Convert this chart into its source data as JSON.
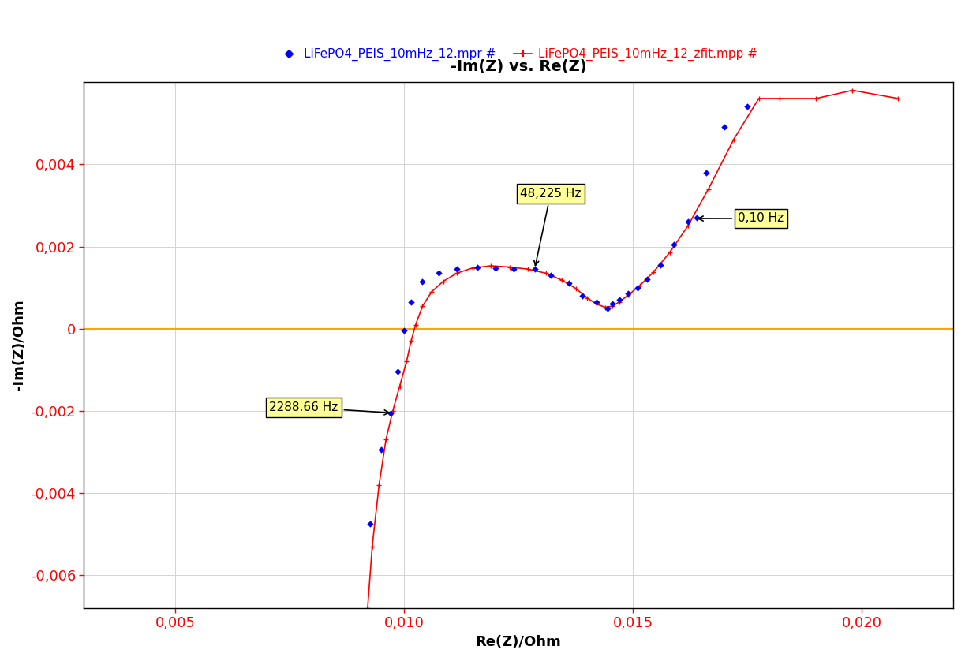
{
  "title": "-Im(Z) vs. Re(Z)",
  "xlabel": "Re(Z)/Ohm",
  "ylabel": "-Im(Z)/Ohm",
  "xlim": [
    0.003,
    0.022
  ],
  "ylim": [
    -0.0068,
    0.006
  ],
  "xticks": [
    0.005,
    0.01,
    0.015,
    0.02
  ],
  "yticks": [
    -0.006,
    -0.004,
    -0.002,
    0,
    0.002,
    0.004
  ],
  "legend1_label": "LiFePO4_PEIS_10mHz_12.mpr #",
  "legend2_label": "LiFePO4_PEIS_10mHz_12_zfit.mpp #",
  "color_blue": "#0000FF",
  "color_red": "#FF0000",
  "color_orange": "#FFA500",
  "color_yellow_bg": "#FFFF99",
  "blue_data": [
    [
      0.00925,
      -0.00475
    ],
    [
      0.0095,
      -0.00295
    ],
    [
      0.0097,
      -0.00205
    ],
    [
      0.00985,
      -0.00105
    ],
    [
      0.01,
      -5e-05
    ],
    [
      0.01015,
      0.00065
    ],
    [
      0.0104,
      0.00115
    ],
    [
      0.01075,
      0.00135
    ],
    [
      0.01115,
      0.00145
    ],
    [
      0.0116,
      0.0015
    ],
    [
      0.012,
      0.00148
    ],
    [
      0.0124,
      0.00145
    ],
    [
      0.01285,
      0.00145
    ],
    [
      0.0132,
      0.0013
    ],
    [
      0.0136,
      0.0011
    ],
    [
      0.0139,
      0.0008
    ],
    [
      0.0142,
      0.00065
    ],
    [
      0.01445,
      0.0005
    ],
    [
      0.01455,
      0.0006
    ],
    [
      0.0147,
      0.0007
    ],
    [
      0.0149,
      0.00085
    ],
    [
      0.0151,
      0.001
    ],
    [
      0.0153,
      0.0012
    ],
    [
      0.0156,
      0.00155
    ],
    [
      0.0159,
      0.00205
    ],
    [
      0.0162,
      0.0026
    ],
    [
      0.0164,
      0.0027
    ],
    [
      0.0166,
      0.0038
    ],
    [
      0.017,
      0.0049
    ],
    [
      0.0175,
      0.0054
    ]
  ],
  "red_data": [
    [
      0.0092,
      -0.0068
    ],
    [
      0.0093,
      -0.0053
    ],
    [
      0.00945,
      -0.0038
    ],
    [
      0.0096,
      -0.0027
    ],
    [
      0.00975,
      -0.002
    ],
    [
      0.0099,
      -0.0014
    ],
    [
      0.01005,
      -0.0008
    ],
    [
      0.01015,
      -0.0003
    ],
    [
      0.01025,
      0.0001
    ],
    [
      0.0104,
      0.00055
    ],
    [
      0.0106,
      0.0009
    ],
    [
      0.01085,
      0.00115
    ],
    [
      0.01115,
      0.00135
    ],
    [
      0.0115,
      0.00148
    ],
    [
      0.0119,
      0.00153
    ],
    [
      0.0123,
      0.0015
    ],
    [
      0.0127,
      0.00145
    ],
    [
      0.0131,
      0.00135
    ],
    [
      0.01345,
      0.00118
    ],
    [
      0.01375,
      0.00098
    ],
    [
      0.014,
      0.00075
    ],
    [
      0.0142,
      0.0006
    ],
    [
      0.0144,
      0.00052
    ],
    [
      0.01455,
      0.00055
    ],
    [
      0.0147,
      0.00065
    ],
    [
      0.0149,
      0.00082
    ],
    [
      0.01515,
      0.00105
    ],
    [
      0.01545,
      0.00138
    ],
    [
      0.0158,
      0.00185
    ],
    [
      0.0162,
      0.0025
    ],
    [
      0.01665,
      0.0034
    ],
    [
      0.0172,
      0.0046
    ],
    [
      0.01775,
      0.0056
    ],
    [
      0.0182,
      0.0056
    ],
    [
      0.019,
      0.0056
    ],
    [
      0.0198,
      0.0058
    ],
    [
      0.0208,
      0.0056
    ]
  ]
}
